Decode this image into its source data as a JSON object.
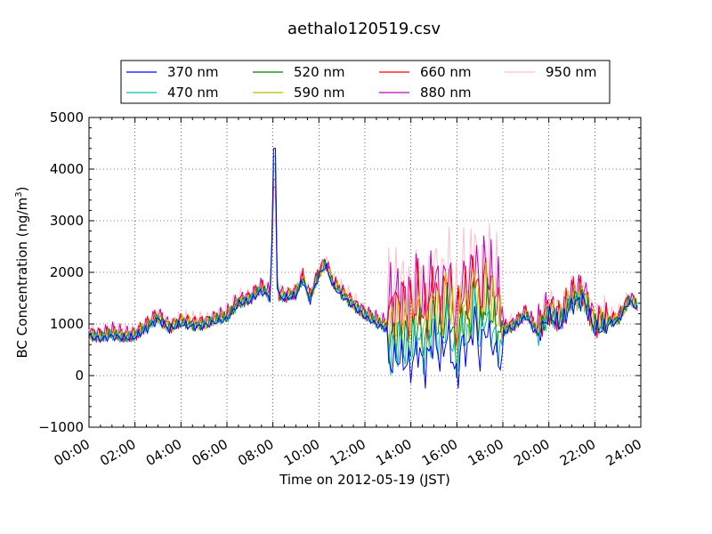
{
  "chart_data": {
    "type": "line",
    "title": "aethalo120519.csv",
    "xlabel": "Time on 2012-05-19 (JST)",
    "ylabel": "BC Concentration (ng/m",
    "ylabel_sup": "3",
    "ylabel_close": ")",
    "xlim": [
      "00:00",
      "24:00"
    ],
    "ylim": [
      -1000,
      5000
    ],
    "x_ticks": [
      "00:00",
      "02:00",
      "04:00",
      "06:00",
      "08:00",
      "10:00",
      "12:00",
      "14:00",
      "16:00",
      "18:00",
      "20:00",
      "22:00",
      "24:00"
    ],
    "y_ticks": [
      "−1000",
      "0",
      "1000",
      "2000",
      "3000",
      "4000",
      "5000"
    ],
    "y_tick_values": [
      -1000,
      0,
      1000,
      2000,
      3000,
      4000,
      5000
    ],
    "grid": true,
    "legend_position": "top",
    "series": [
      {
        "name": "370 nm",
        "color": "#0000ff",
        "offset": 0
      },
      {
        "name": "470 nm",
        "color": "#00bfbf",
        "offset": 0
      },
      {
        "name": "520 nm",
        "color": "#008000",
        "offset": 0
      },
      {
        "name": "590 nm",
        "color": "#bfbf00",
        "offset": 0
      },
      {
        "name": "660 nm",
        "color": "#ff0000",
        "offset": 0
      },
      {
        "name": "880 nm",
        "color": "#bf00bf",
        "offset": 0
      },
      {
        "name": "950 nm",
        "color": "#ffc0cb",
        "offset": 0
      }
    ],
    "x_hours": [
      0,
      0.5,
      1,
      1.5,
      2,
      2.5,
      3,
      3.5,
      4,
      4.5,
      5,
      5.5,
      6,
      6.5,
      7,
      7.5,
      7.9,
      8.05,
      8.2,
      8.5,
      9,
      9.3,
      9.6,
      10,
      10.3,
      10.6,
      11,
      11.5,
      12,
      12.5,
      13,
      13.5,
      14,
      14.3,
      14.6,
      15,
      15.3,
      15.6,
      16,
      16.2,
      16.5,
      16.8,
      17,
      17.2,
      17.5,
      18,
      18.5,
      19,
      19.5,
      20,
      20.5,
      21,
      21.5,
      22,
      22.5,
      23,
      23.5,
      24
    ],
    "base_values": [
      820,
      760,
      820,
      780,
      800,
      950,
      1150,
      950,
      1050,
      1000,
      1020,
      1100,
      1150,
      1450,
      1500,
      1700,
      1550,
      4400,
      1600,
      1550,
      1600,
      1900,
      1500,
      2000,
      2200,
      1800,
      1600,
      1400,
      1200,
      1050,
      950,
      1100,
      900,
      1300,
      850,
      1500,
      1000,
      1600,
      600,
      1400,
      1200,
      1900,
      1000,
      1700,
      1400,
      900,
      1000,
      1200,
      850,
      1300,
      1100,
      1500,
      1600,
      1000,
      1050,
      1100,
      1500,
      1300
    ]
  }
}
